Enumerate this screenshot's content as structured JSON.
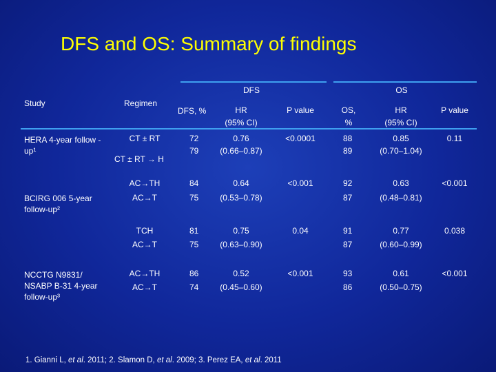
{
  "title": "DFS and OS: Summary of findings",
  "header": {
    "group_dfs": "DFS",
    "group_os": "OS",
    "study": "Study",
    "regimen": "Regimen",
    "dfs_pct": "DFS, %",
    "hr_dfs": "HR",
    "ci_dfs": "(95% CI)",
    "p_dfs": "P value",
    "os_pct_1": "OS,",
    "os_pct_2": "%",
    "hr_os": "HR",
    "ci_os": "(95% CI)",
    "p_os": "P value"
  },
  "rows": [
    {
      "study": "HERA 4-year follow -up¹",
      "regimen": [
        "CT ± RT",
        "CT ± RT → H"
      ],
      "dfs": [
        "72",
        "79"
      ],
      "hr_dfs": "0.76",
      "ci_dfs": "(0.66–0.87)",
      "p_dfs": "<0.0001",
      "os": [
        "88",
        "89"
      ],
      "hr_os": "0.85",
      "ci_os": "(0.70–1.04)",
      "p_os": "0.11"
    },
    {
      "study": "BCIRG 006 5-year follow-up²",
      "regimen": [
        "AC→TH",
        "AC→T"
      ],
      "dfs": [
        "84",
        "75"
      ],
      "hr_dfs": "0.64",
      "ci_dfs": "(0.53–0.78)",
      "p_dfs": "<0.001",
      "os": [
        "92",
        "87"
      ],
      "hr_os": "0.63",
      "ci_os": "(0.48–0.81)",
      "p_os": "<0.001"
    },
    {
      "study": "",
      "regimen": [
        "TCH",
        "AC→T"
      ],
      "dfs": [
        "81",
        "75"
      ],
      "hr_dfs": "0.75",
      "ci_dfs": "(0.63–0.90)",
      "p_dfs": "0.04",
      "os": [
        "91",
        "87"
      ],
      "hr_os": "0.77",
      "ci_os": "(0.60–0.99)",
      "p_os": "0.038"
    },
    {
      "study": "NCCTG N9831/ NSABP B-31 4-year follow-up³",
      "regimen": [
        "AC→TH",
        "AC→T"
      ],
      "dfs": [
        "86",
        "74"
      ],
      "hr_dfs": "0.52",
      "ci_dfs": "(0.45–0.60)",
      "p_dfs": "<0.001",
      "os": [
        "93",
        "86"
      ],
      "hr_os": "0.61",
      "ci_os": "(0.50–0.75)",
      "p_os": "<0.001"
    }
  ],
  "references": {
    "a": "1. Gianni L, ",
    "a_it": "et al",
    "b": ". 2011; 2. Slamon D, ",
    "b_it": "et al",
    "c": ". 2009; 3. Perez EA, ",
    "c_it": "et al",
    "d": ". 2011"
  },
  "colors": {
    "title": "#ffff00",
    "rule": "#3fa0f0",
    "text": "#ffffff"
  }
}
